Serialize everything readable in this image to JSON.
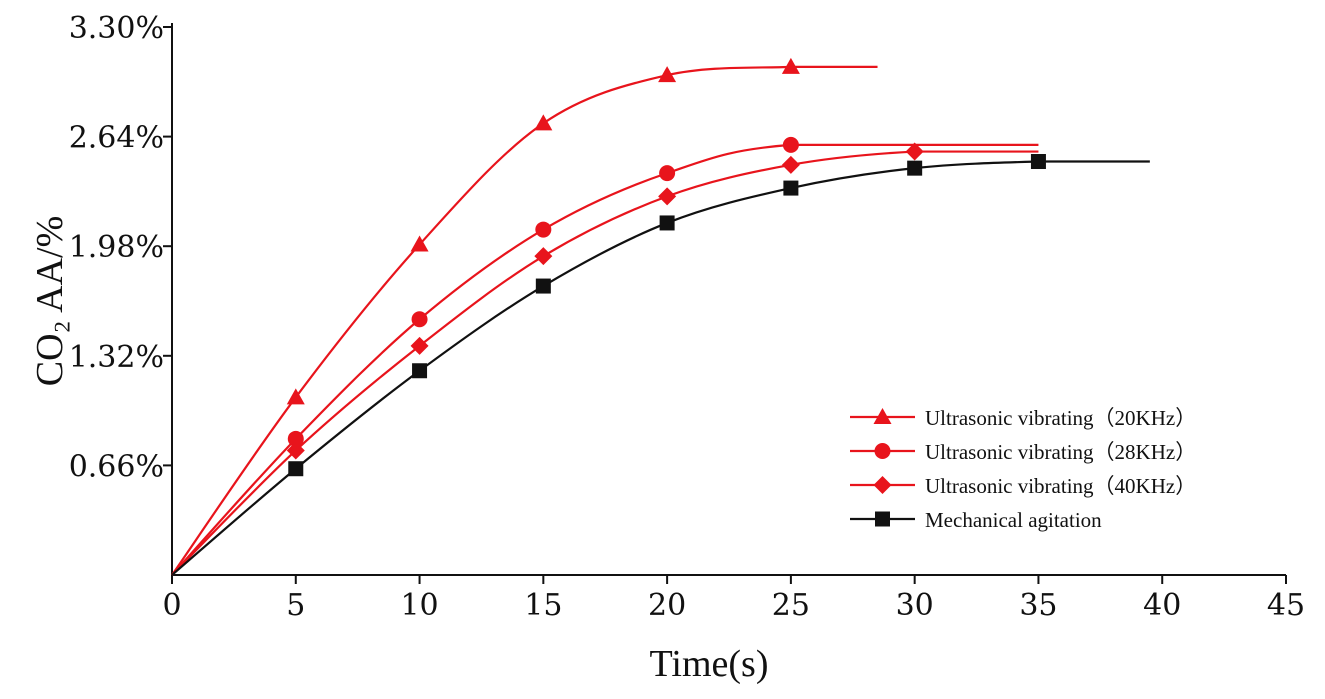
{
  "chart_data": {
    "type": "line",
    "title": "",
    "xlabel": "Time(s)",
    "ylabel": "CO₂ AA/%",
    "xlim": [
      0,
      45
    ],
    "ylim": [
      0,
      3.3
    ],
    "xticks": [
      0,
      5,
      10,
      15,
      20,
      25,
      30,
      35,
      40,
      45
    ],
    "xtick_labels": [
      "0",
      "5",
      "10",
      "15",
      "20",
      "25",
      "30",
      "35",
      "40",
      "45"
    ],
    "yticks": [
      0.66,
      1.32,
      1.98,
      2.64,
      3.3
    ],
    "ytick_labels": [
      "0.66%",
      "1.32%",
      "1.98%",
      "2.64%",
      "3.30%"
    ],
    "grid": false,
    "legend_position": "bottom-right",
    "series": [
      {
        "name": "Ultrasonic vibrating（20KHz）",
        "color": "#e8141c",
        "marker": "triangle",
        "x": [
          5,
          10,
          15,
          20,
          25
        ],
        "values": [
          1.07,
          1.99,
          2.72,
          3.01,
          3.06
        ],
        "curve_x": [
          0,
          5,
          10,
          15,
          20,
          25,
          28.5
        ],
        "curve_y": [
          0,
          1.07,
          1.99,
          2.72,
          3.01,
          3.06,
          3.06
        ]
      },
      {
        "name": "Ultrasonic vibrating（28KHz）",
        "color": "#e8141c",
        "marker": "circle",
        "x": [
          5,
          10,
          15,
          20,
          25
        ],
        "values": [
          0.82,
          1.54,
          2.08,
          2.42,
          2.59
        ],
        "curve_x": [
          0,
          5,
          10,
          15,
          20,
          25,
          35
        ],
        "curve_y": [
          0,
          0.82,
          1.54,
          2.08,
          2.42,
          2.59,
          2.59
        ]
      },
      {
        "name": "Ultrasonic vibrating（40KHz）",
        "color": "#e8141c",
        "marker": "diamond",
        "x": [
          5,
          10,
          15,
          20,
          25,
          30
        ],
        "values": [
          0.75,
          1.38,
          1.92,
          2.28,
          2.47,
          2.55
        ],
        "curve_x": [
          0,
          5,
          10,
          15,
          20,
          25,
          30,
          35
        ],
        "curve_y": [
          0,
          0.75,
          1.38,
          1.92,
          2.28,
          2.47,
          2.55,
          2.55
        ]
      },
      {
        "name": "Mechanical agitation",
        "color": "#111111",
        "marker": "square",
        "x": [
          5,
          10,
          15,
          20,
          25,
          30,
          35
        ],
        "values": [
          0.64,
          1.23,
          1.74,
          2.12,
          2.33,
          2.45,
          2.49
        ],
        "curve_x": [
          0,
          5,
          10,
          15,
          20,
          25,
          30,
          35,
          39.5
        ],
        "curve_y": [
          0,
          0.64,
          1.23,
          1.74,
          2.12,
          2.33,
          2.45,
          2.49,
          2.49
        ]
      }
    ]
  }
}
